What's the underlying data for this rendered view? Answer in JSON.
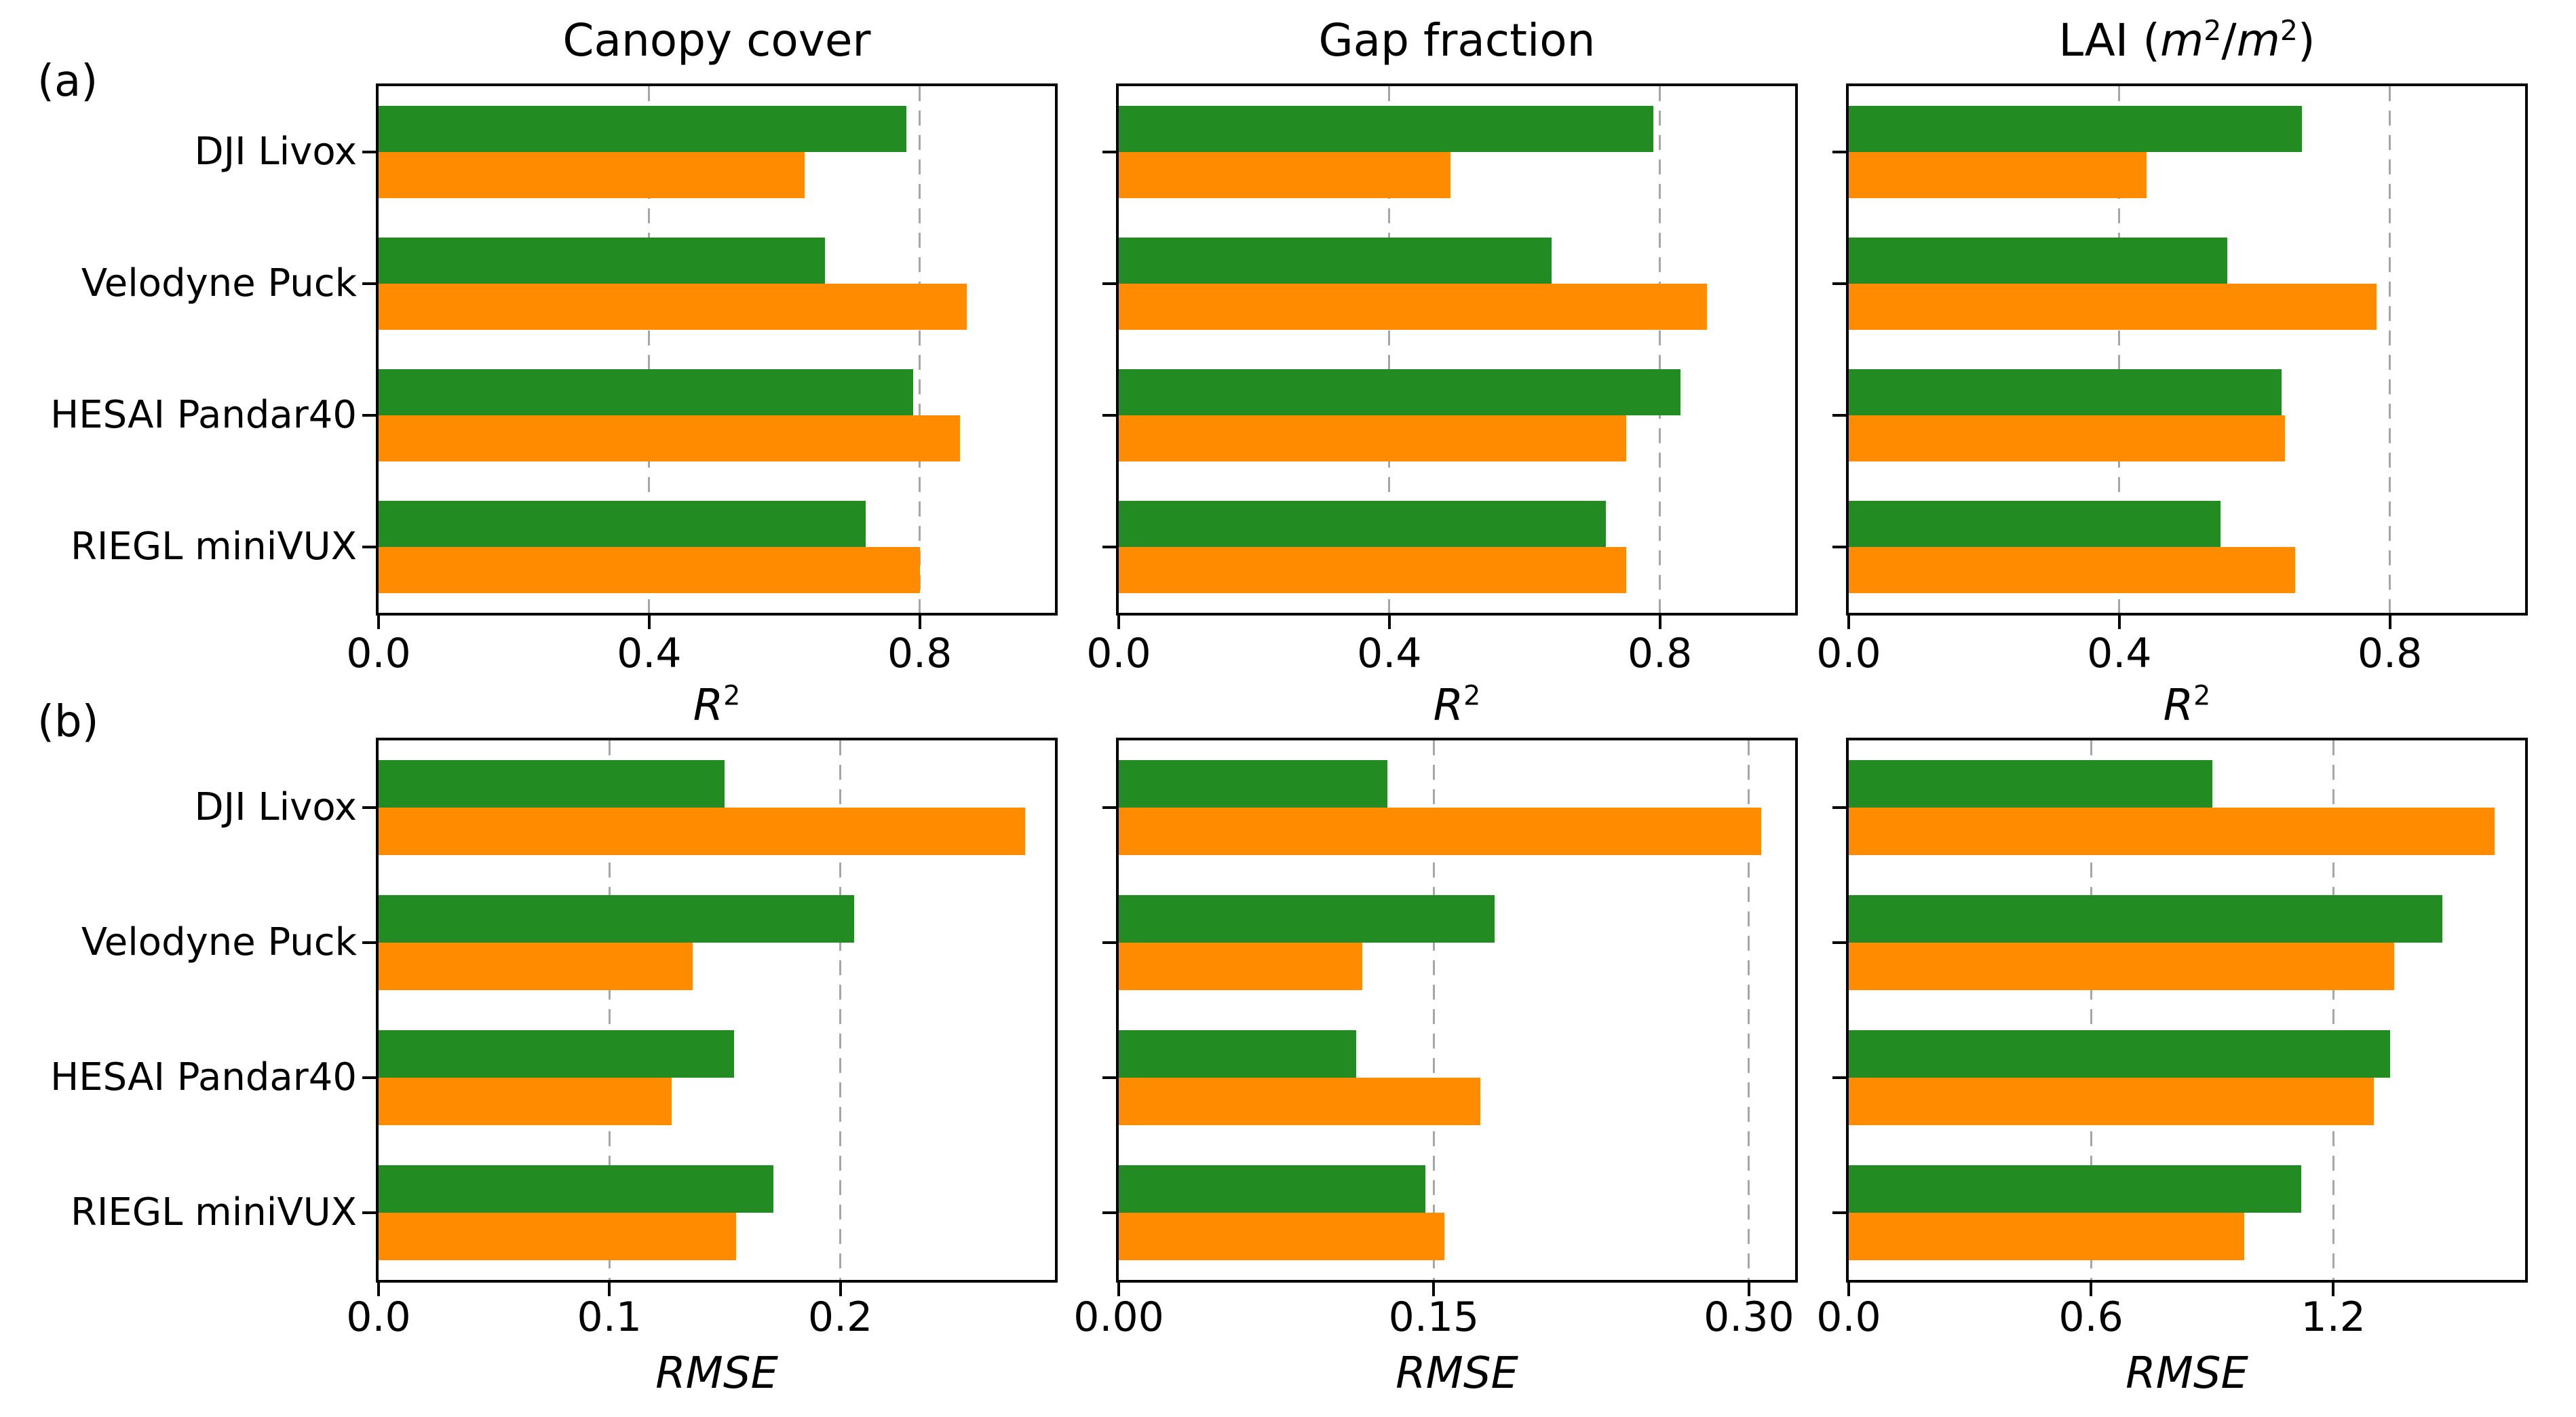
{
  "figure": {
    "panel_labels": [
      "(a)",
      "(b)"
    ],
    "background": "#FFFFFF",
    "text_color": "#000000",
    "colors": {
      "series_green": "#228B22",
      "series_orange": "#FF8C00",
      "grid": "#A6A6A6",
      "spine": "#000000"
    }
  },
  "categories": [
    "DJI Livox",
    "Velodyne Puck",
    "HESAI Pandar40",
    "RIEGL miniVUX"
  ],
  "chart_data": [
    {
      "id": "canopy-cover-r2",
      "panel": "a",
      "row": 0,
      "col": 0,
      "type": "bar",
      "orientation": "horizontal",
      "legend_position": "none",
      "grid": "dashed-vertical",
      "title": "Canopy cover",
      "xlabel": "R²",
      "categories": [
        "DJI Livox",
        "Velodyne Puck",
        "HESAI Pandar40",
        "RIEGL miniVUX"
      ],
      "series": [
        {
          "name": "green",
          "color": "#228B22",
          "values": [
            0.78,
            0.66,
            0.79,
            0.72
          ]
        },
        {
          "name": "orange",
          "color": "#FF8C00",
          "values": [
            0.63,
            0.87,
            0.86,
            0.8
          ]
        }
      ],
      "xlim": [
        0,
        1.0
      ],
      "xticks": [
        {
          "value": 0.0,
          "label": "0.0"
        },
        {
          "value": 0.4,
          "label": "0.4"
        },
        {
          "value": 0.8,
          "label": "0.8"
        }
      ],
      "gridlines": [
        0.4,
        0.8
      ]
    },
    {
      "id": "gap-fraction-r2",
      "panel": "a",
      "row": 0,
      "col": 1,
      "type": "bar",
      "orientation": "horizontal",
      "legend_position": "none",
      "grid": "dashed-vertical",
      "title": "Gap fraction",
      "xlabel": "R²",
      "categories": [
        "DJI Livox",
        "Velodyne Puck",
        "HESAI Pandar40",
        "RIEGL miniVUX"
      ],
      "series": [
        {
          "name": "green",
          "color": "#228B22",
          "values": [
            0.79,
            0.64,
            0.83,
            0.72
          ]
        },
        {
          "name": "orange",
          "color": "#FF8C00",
          "values": [
            0.49,
            0.87,
            0.75,
            0.75
          ]
        }
      ],
      "xlim": [
        0,
        1.0
      ],
      "xticks": [
        {
          "value": 0.0,
          "label": "0.0"
        },
        {
          "value": 0.4,
          "label": "0.4"
        },
        {
          "value": 0.8,
          "label": "0.8"
        }
      ],
      "gridlines": [
        0.4,
        0.8
      ]
    },
    {
      "id": "lai-r2",
      "panel": "a",
      "row": 0,
      "col": 2,
      "type": "bar",
      "orientation": "horizontal",
      "legend_position": "none",
      "grid": "dashed-vertical",
      "title": "LAI (m²/m²)",
      "xlabel": "R²",
      "categories": [
        "DJI Livox",
        "Velodyne Puck",
        "HESAI Pandar40",
        "RIEGL miniVUX"
      ],
      "series": [
        {
          "name": "green",
          "color": "#228B22",
          "values": [
            0.67,
            0.56,
            0.64,
            0.55
          ]
        },
        {
          "name": "orange",
          "color": "#FF8C00",
          "values": [
            0.44,
            0.78,
            0.645,
            0.66
          ]
        }
      ],
      "xlim": [
        0,
        1.0
      ],
      "xticks": [
        {
          "value": 0.0,
          "label": "0.0"
        },
        {
          "value": 0.4,
          "label": "0.4"
        },
        {
          "value": 0.8,
          "label": "0.8"
        }
      ],
      "gridlines": [
        0.4,
        0.8
      ]
    },
    {
      "id": "canopy-cover-rmse",
      "panel": "b",
      "row": 1,
      "col": 0,
      "type": "bar",
      "orientation": "horizontal",
      "legend_position": "none",
      "grid": "dashed-vertical",
      "title": "",
      "xlabel": "RMSE",
      "categories": [
        "DJI Livox",
        "Velodyne Puck",
        "HESAI Pandar40",
        "RIEGL miniVUX"
      ],
      "series": [
        {
          "name": "green",
          "color": "#228B22",
          "values": [
            0.15,
            0.206,
            0.154,
            0.171
          ]
        },
        {
          "name": "orange",
          "color": "#FF8C00",
          "values": [
            0.28,
            0.136,
            0.127,
            0.155
          ]
        }
      ],
      "xlim": [
        0,
        0.293
      ],
      "xticks": [
        {
          "value": 0.0,
          "label": "0.0"
        },
        {
          "value": 0.1,
          "label": "0.1"
        },
        {
          "value": 0.2,
          "label": "0.2"
        }
      ],
      "gridlines": [
        0.1,
        0.2
      ]
    },
    {
      "id": "gap-fraction-rmse",
      "panel": "b",
      "row": 1,
      "col": 1,
      "type": "bar",
      "orientation": "horizontal",
      "legend_position": "none",
      "grid": "dashed-vertical",
      "title": "",
      "xlabel": "RMSE",
      "categories": [
        "DJI Livox",
        "Velodyne Puck",
        "HESAI Pandar40",
        "RIEGL miniVUX"
      ],
      "series": [
        {
          "name": "green",
          "color": "#228B22",
          "values": [
            0.128,
            0.179,
            0.113,
            0.146
          ]
        },
        {
          "name": "orange",
          "color": "#FF8C00",
          "values": [
            0.306,
            0.116,
            0.172,
            0.155
          ]
        }
      ],
      "xlim": [
        0,
        0.322
      ],
      "xticks": [
        {
          "value": 0.0,
          "label": "0.00"
        },
        {
          "value": 0.15,
          "label": "0.15"
        },
        {
          "value": 0.3,
          "label": "0.30"
        }
      ],
      "gridlines": [
        0.15,
        0.3
      ]
    },
    {
      "id": "lai-rmse",
      "panel": "b",
      "row": 1,
      "col": 2,
      "type": "bar",
      "orientation": "horizontal",
      "legend_position": "none",
      "grid": "dashed-vertical",
      "title": "",
      "xlabel": "RMSE",
      "categories": [
        "DJI Livox",
        "Velodyne Puck",
        "HESAI Pandar40",
        "RIEGL miniVUX"
      ],
      "series": [
        {
          "name": "green",
          "color": "#228B22",
          "values": [
            0.9,
            1.47,
            1.34,
            1.12
          ]
        },
        {
          "name": "orange",
          "color": "#FF8C00",
          "values": [
            1.6,
            1.35,
            1.3,
            0.98
          ]
        }
      ],
      "xlim": [
        0,
        1.675
      ],
      "xticks": [
        {
          "value": 0.0,
          "label": "0.0"
        },
        {
          "value": 0.6,
          "label": "0.6"
        },
        {
          "value": 1.2,
          "label": "1.2"
        }
      ],
      "gridlines": [
        0.6,
        1.2
      ]
    }
  ]
}
